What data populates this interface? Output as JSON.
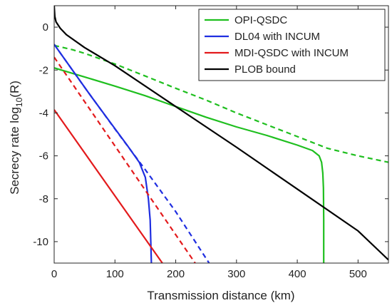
{
  "chart_data": {
    "type": "line",
    "xlabel": "Transmission distance (km)",
    "ylabel_main": "Secrecy rate log",
    "ylabel_sub": "10",
    "ylabel_tail": "(R)",
    "xlim": [
      0,
      550
    ],
    "ylim": [
      -11,
      1
    ],
    "xticks": [
      0,
      100,
      200,
      300,
      400,
      500
    ],
    "yticks": [
      0,
      -2,
      -4,
      -6,
      -8,
      -10
    ],
    "grid": false,
    "legend_placement": "top-right",
    "series": [
      {
        "name": "OPI-QSDC",
        "color": "#1fbf1f",
        "style": "solid",
        "points": [
          [
            0,
            -1.9
          ],
          [
            50,
            -2.32
          ],
          [
            100,
            -2.75
          ],
          [
            150,
            -3.2
          ],
          [
            200,
            -3.7
          ],
          [
            250,
            -4.2
          ],
          [
            300,
            -4.65
          ],
          [
            350,
            -5.05
          ],
          [
            400,
            -5.5
          ],
          [
            425,
            -5.75
          ],
          [
            436,
            -6.0
          ],
          [
            440,
            -6.3
          ],
          [
            442,
            -6.8
          ],
          [
            443,
            -7.5
          ],
          [
            443.5,
            -9.0
          ],
          [
            443.5,
            -11
          ]
        ]
      },
      {
        "name": "",
        "color": "#1fbf1f",
        "style": "dashed",
        "points": [
          [
            0,
            -0.85
          ],
          [
            30,
            -1.05
          ],
          [
            50,
            -1.22
          ],
          [
            100,
            -1.72
          ],
          [
            150,
            -2.28
          ],
          [
            200,
            -2.85
          ],
          [
            250,
            -3.4
          ],
          [
            300,
            -4.0
          ],
          [
            350,
            -4.55
          ],
          [
            400,
            -5.1
          ],
          [
            450,
            -5.65
          ],
          [
            500,
            -6.0
          ],
          [
            550,
            -6.3
          ]
        ]
      },
      {
        "name": "DL04 with INCUM",
        "color": "#1f2ee0",
        "style": "solid",
        "points": [
          [
            0,
            -0.8
          ],
          [
            30,
            -2.0
          ],
          [
            60,
            -3.2
          ],
          [
            90,
            -4.35
          ],
          [
            120,
            -5.5
          ],
          [
            140,
            -6.3
          ],
          [
            150,
            -7.0
          ],
          [
            155,
            -8.0
          ],
          [
            158,
            -9.0
          ],
          [
            160,
            -11
          ]
        ]
      },
      {
        "name": "",
        "color": "#1f2ee0",
        "style": "dashed",
        "points": [
          [
            0,
            -0.8
          ],
          [
            50,
            -2.8
          ],
          [
            100,
            -4.75
          ],
          [
            150,
            -6.65
          ],
          [
            200,
            -8.6
          ],
          [
            255,
            -11
          ]
        ]
      },
      {
        "name": "MDI-QSDC with INCUM",
        "color": "#e31a1c",
        "style": "solid",
        "points": [
          [
            0,
            -3.85
          ],
          [
            178,
            -11
          ]
        ]
      },
      {
        "name": "",
        "color": "#e31a1c",
        "style": "dashed",
        "points": [
          [
            0,
            -1.4
          ],
          [
            232,
            -11
          ]
        ]
      },
      {
        "name": "PLOB bound",
        "color": "#000000",
        "style": "solid",
        "points": [
          [
            0,
            1.0
          ],
          [
            1,
            0.5
          ],
          [
            3,
            0.25
          ],
          [
            10,
            -0.05
          ],
          [
            20,
            -0.35
          ],
          [
            50,
            -0.95
          ],
          [
            100,
            -1.8
          ],
          [
            200,
            -3.7
          ],
          [
            300,
            -5.6
          ],
          [
            400,
            -7.55
          ],
          [
            500,
            -9.5
          ],
          [
            550,
            -10.85
          ]
        ]
      }
    ]
  }
}
